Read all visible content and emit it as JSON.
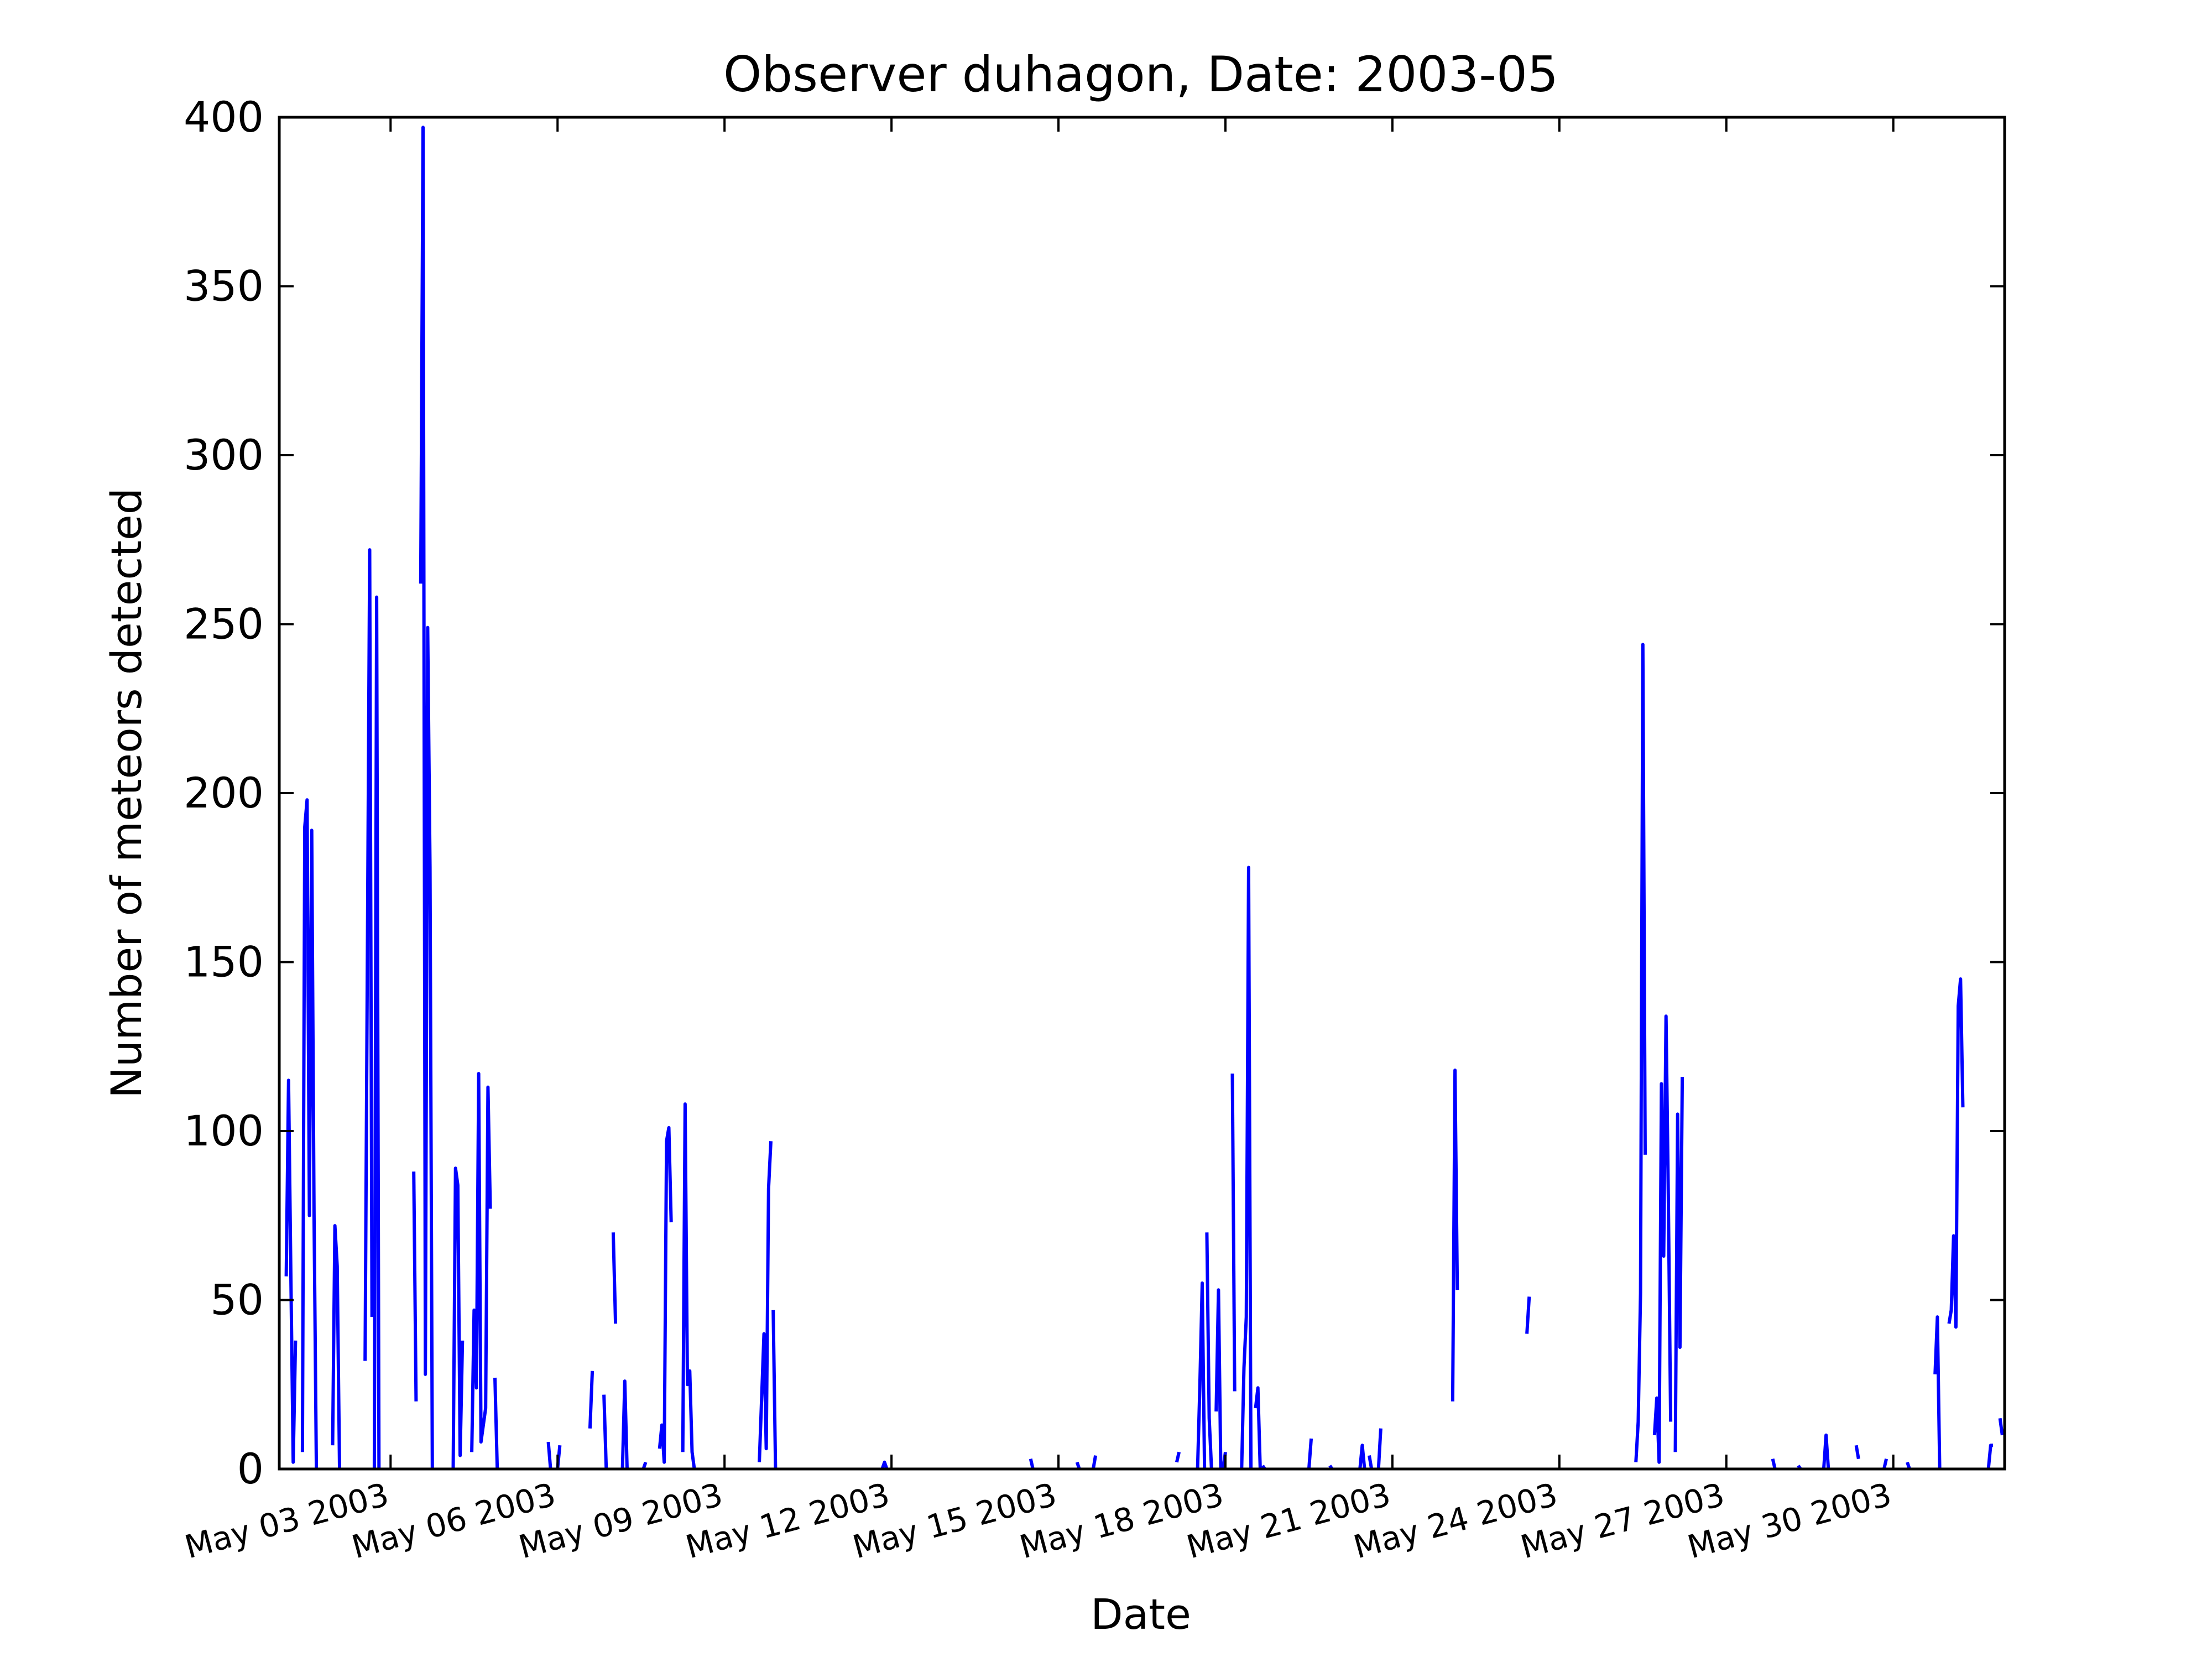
{
  "chart_data": {
    "type": "line",
    "title": "Observer duhagon, Date: 2003-05",
    "xlabel": "Date",
    "ylabel": "Number of meteors detected",
    "xlim": [
      "2003-05-01 00:00",
      "2003-06-01 00:00"
    ],
    "ylim": [
      0,
      400
    ],
    "x_ticks": [
      "May 03 2003",
      "May 06 2003",
      "May 09 2003",
      "May 12 2003",
      "May 15 2003",
      "May 18 2003",
      "May 21 2003",
      "May 24 2003",
      "May 27 2003",
      "May 30 2003"
    ],
    "y_ticks": [
      "0",
      "50",
      "100",
      "150",
      "200",
      "250",
      "300",
      "350",
      "400"
    ],
    "grid": false,
    "legend": "none",
    "line_color": "#0000ff",
    "segments": [
      [
        [
          "2003-05-01 03:00",
          57
        ],
        [
          "2003-05-01 04:00",
          115
        ],
        [
          "2003-05-01 05:00",
          57
        ],
        [
          "2003-05-01 06:00",
          2
        ],
        [
          "2003-05-01 07:00",
          38
        ]
      ],
      [
        [
          "2003-05-01 10:00",
          5
        ],
        [
          "2003-05-01 11:00",
          190
        ],
        [
          "2003-05-01 12:00",
          198
        ],
        [
          "2003-05-01 13:00",
          75
        ],
        [
          "2003-05-01 14:00",
          189
        ],
        [
          "2003-05-01 15:00",
          75
        ],
        [
          "2003-05-01 16:00",
          0
        ]
      ],
      [
        [
          "2003-05-01 23:00",
          7
        ],
        [
          "2003-05-02 00:00",
          72
        ],
        [
          "2003-05-02 01:00",
          60
        ],
        [
          "2003-05-02 02:00",
          0
        ]
      ],
      [
        [
          "2003-05-02 13:00",
          32
        ],
        [
          "2003-05-02 15:00",
          272
        ],
        [
          "2003-05-02 16:00",
          45
        ]
      ],
      [
        [
          "2003-05-02 17:00",
          0
        ],
        [
          "2003-05-02 18:00",
          258
        ],
        [
          "2003-05-02 19:00",
          0
        ]
      ],
      [
        [
          "2003-05-03 10:00",
          88
        ],
        [
          "2003-05-03 11:00",
          20
        ]
      ],
      [
        [
          "2003-05-03 13:00",
          262
        ],
        [
          "2003-05-03 14:00",
          397
        ],
        [
          "2003-05-03 15:00",
          28
        ],
        [
          "2003-05-03 16:00",
          249
        ],
        [
          "2003-05-03 17:00",
          178
        ],
        [
          "2003-05-03 18:00",
          0
        ]
      ],
      [
        [
          "2003-05-04 03:00",
          0
        ],
        [
          "2003-05-04 04:00",
          89
        ],
        [
          "2003-05-04 05:00",
          84
        ],
        [
          "2003-05-04 06:00",
          4
        ],
        [
          "2003-05-04 07:00",
          38
        ]
      ],
      [
        [
          "2003-05-04 11:00",
          5
        ],
        [
          "2003-05-04 12:00",
          47
        ],
        [
          "2003-05-04 13:00",
          24
        ],
        [
          "2003-05-04 14:00",
          117
        ],
        [
          "2003-05-04 15:00",
          8
        ],
        [
          "2003-05-04 17:00",
          18
        ],
        [
          "2003-05-04 18:00",
          113
        ],
        [
          "2003-05-04 19:00",
          77
        ]
      ],
      [
        [
          "2003-05-04 21:00",
          27
        ],
        [
          "2003-05-04 22:00",
          0
        ]
      ],
      [
        [
          "2003-05-05 20:00",
          8
        ],
        [
          "2003-05-05 21:00",
          0
        ]
      ],
      [
        [
          "2003-05-06 00:00",
          0
        ],
        [
          "2003-05-06 01:00",
          7
        ]
      ],
      [
        [
          "2003-05-06 14:00",
          12
        ],
        [
          "2003-05-06 15:00",
          29
        ]
      ],
      [
        [
          "2003-05-06 20:00",
          22
        ],
        [
          "2003-05-06 21:00",
          0
        ]
      ],
      [
        [
          "2003-05-07 00:00",
          70
        ],
        [
          "2003-05-07 01:00",
          43
        ]
      ],
      [
        [
          "2003-05-07 04:00",
          0
        ],
        [
          "2003-05-07 05:00",
          26
        ],
        [
          "2003-05-07 06:00",
          0
        ]
      ],
      [
        [
          "2003-05-07 13:00",
          0
        ],
        [
          "2003-05-07 14:00",
          2
        ]
      ],
      [
        [
          "2003-05-07 20:00",
          6
        ],
        [
          "2003-05-07 21:00",
          13
        ],
        [
          "2003-05-07 22:00",
          2
        ],
        [
          "2003-05-07 23:00",
          97
        ],
        [
          "2003-05-08 00:00",
          101
        ],
        [
          "2003-05-08 01:00",
          73
        ]
      ],
      [
        [
          "2003-05-08 06:00",
          5
        ],
        [
          "2003-05-08 07:00",
          108
        ],
        [
          "2003-05-08 08:00",
          25
        ],
        [
          "2003-05-08 09:00",
          29
        ],
        [
          "2003-05-08 10:00",
          5
        ],
        [
          "2003-05-08 11:00",
          0
        ]
      ],
      [
        [
          "2003-05-09 15:00",
          2
        ],
        [
          "2003-05-09 17:00",
          40
        ],
        [
          "2003-05-09 18:00",
          6
        ],
        [
          "2003-05-09 19:00",
          83
        ],
        [
          "2003-05-09 20:00",
          97
        ]
      ],
      [
        [
          "2003-05-09 21:00",
          47
        ],
        [
          "2003-05-09 22:00",
          0
        ]
      ],
      [
        [
          "2003-05-11 20:00",
          0
        ],
        [
          "2003-05-11 21:00",
          2
        ],
        [
          "2003-05-11 22:00",
          0
        ]
      ],
      [
        [
          "2003-05-14 12:00",
          3
        ],
        [
          "2003-05-14 13:00",
          0
        ]
      ],
      [
        [
          "2003-05-15 08:00",
          2
        ],
        [
          "2003-05-15 09:00",
          0
        ]
      ],
      [
        [
          "2003-05-15 15:00",
          0
        ],
        [
          "2003-05-15 16:00",
          4
        ]
      ],
      [
        [
          "2003-05-17 03:00",
          2
        ],
        [
          "2003-05-17 04:00",
          5
        ]
      ],
      [
        [
          "2003-05-17 12:00",
          0
        ],
        [
          "2003-05-17 13:00",
          25
        ],
        [
          "2003-05-17 14:00",
          55
        ],
        [
          "2003-05-17 15:00",
          0
        ]
      ],
      [
        [
          "2003-05-17 16:00",
          70
        ],
        [
          "2003-05-17 17:00",
          15
        ],
        [
          "2003-05-17 18:00",
          0
        ]
      ],
      [
        [
          "2003-05-17 20:00",
          17
        ],
        [
          "2003-05-17 21:00",
          53
        ],
        [
          "2003-05-17 22:00",
          0
        ]
      ],
      [
        [
          "2003-05-17 23:00",
          0
        ],
        [
          "2003-05-18 00:00",
          5
        ]
      ],
      [
        [
          "2003-05-18 03:00",
          117
        ],
        [
          "2003-05-18 04:00",
          23
        ]
      ],
      [
        [
          "2003-05-18 07:00",
          0
        ],
        [
          "2003-05-18 08:00",
          30
        ],
        [
          "2003-05-18 09:00",
          45
        ],
        [
          "2003-05-18 10:00",
          178
        ],
        [
          "2003-05-18 11:00",
          0
        ]
      ],
      [
        [
          "2003-05-18 13:00",
          18
        ],
        [
          "2003-05-18 14:00",
          24
        ],
        [
          "2003-05-18 15:00",
          0
        ]
      ],
      [
        [
          "2003-05-18 16:00",
          1
        ],
        [
          "2003-05-18 17:00",
          0
        ]
      ],
      [
        [
          "2003-05-19 12:00",
          0
        ],
        [
          "2003-05-19 13:00",
          9
        ]
      ],
      [
        [
          "2003-05-19 21:00",
          1
        ],
        [
          "2003-05-19 22:00",
          0
        ]
      ],
      [
        [
          "2003-05-20 10:00",
          0
        ],
        [
          "2003-05-20 11:00",
          7
        ],
        [
          "2003-05-20 12:00",
          0
        ]
      ],
      [
        [
          "2003-05-20 14:00",
          4
        ],
        [
          "2003-05-20 15:00",
          0
        ]
      ],
      [
        [
          "2003-05-20 18:00",
          0
        ],
        [
          "2003-05-20 19:00",
          12
        ]
      ],
      [
        [
          "2003-05-22 02:00",
          20
        ],
        [
          "2003-05-22 03:00",
          118
        ],
        [
          "2003-05-22 04:00",
          53
        ]
      ],
      [
        [
          "2003-05-23 10:00",
          40
        ],
        [
          "2003-05-23 11:00",
          51
        ]
      ],
      [
        [
          "2003-05-25 09:00",
          2
        ],
        [
          "2003-05-25 10:00",
          14
        ],
        [
          "2003-05-25 11:00",
          52
        ],
        [
          "2003-05-25 12:00",
          244
        ],
        [
          "2003-05-25 13:00",
          93
        ]
      ],
      [
        [
          "2003-05-25 17:00",
          10
        ],
        [
          "2003-05-25 18:00",
          21
        ],
        [
          "2003-05-25 19:00",
          2
        ],
        [
          "2003-05-25 20:00",
          114
        ],
        [
          "2003-05-25 21:00",
          63
        ],
        [
          "2003-05-25 22:00",
          134
        ],
        [
          "2003-05-25 23:00",
          80
        ],
        [
          "2003-05-26 00:00",
          14
        ]
      ],
      [
        [
          "2003-05-26 02:00",
          5
        ],
        [
          "2003-05-26 03:00",
          105
        ],
        [
          "2003-05-26 04:00",
          36
        ],
        [
          "2003-05-26 05:00",
          116
        ]
      ],
      [
        [
          "2003-05-27 20:00",
          3
        ],
        [
          "2003-05-27 21:00",
          0
        ]
      ],
      [
        [
          "2003-05-28 07:00",
          1
        ],
        [
          "2003-05-28 08:00",
          0
        ]
      ],
      [
        [
          "2003-05-28 18:00",
          0
        ],
        [
          "2003-05-28 19:00",
          10
        ],
        [
          "2003-05-28 20:00",
          0
        ]
      ],
      [
        [
          "2003-05-29 08:00",
          7
        ],
        [
          "2003-05-29 09:00",
          3
        ]
      ],
      [
        [
          "2003-05-29 20:00",
          0
        ],
        [
          "2003-05-29 21:00",
          3
        ]
      ],
      [
        [
          "2003-05-30 06:00",
          2
        ],
        [
          "2003-05-30 07:00",
          0
        ]
      ],
      [
        [
          "2003-05-30 18:00",
          28
        ],
        [
          "2003-05-30 19:00",
          45
        ],
        [
          "2003-05-30 20:00",
          0
        ]
      ],
      [
        [
          "2003-05-31 00:00",
          43
        ],
        [
          "2003-05-31 01:00",
          47
        ],
        [
          "2003-05-31 02:00",
          69
        ],
        [
          "2003-05-31 03:00",
          42
        ],
        [
          "2003-05-31 04:00",
          137
        ],
        [
          "2003-05-31 05:00",
          145
        ],
        [
          "2003-05-31 06:00",
          107
        ]
      ],
      [
        [
          "2003-05-31 17:00",
          0
        ],
        [
          "2003-05-31 18:00",
          7
        ],
        [
          "2003-05-31 19:00",
          7
        ]
      ],
      [
        [
          "2003-05-31 22:00",
          15
        ],
        [
          "2003-05-31 23:00",
          10
        ]
      ]
    ]
  }
}
